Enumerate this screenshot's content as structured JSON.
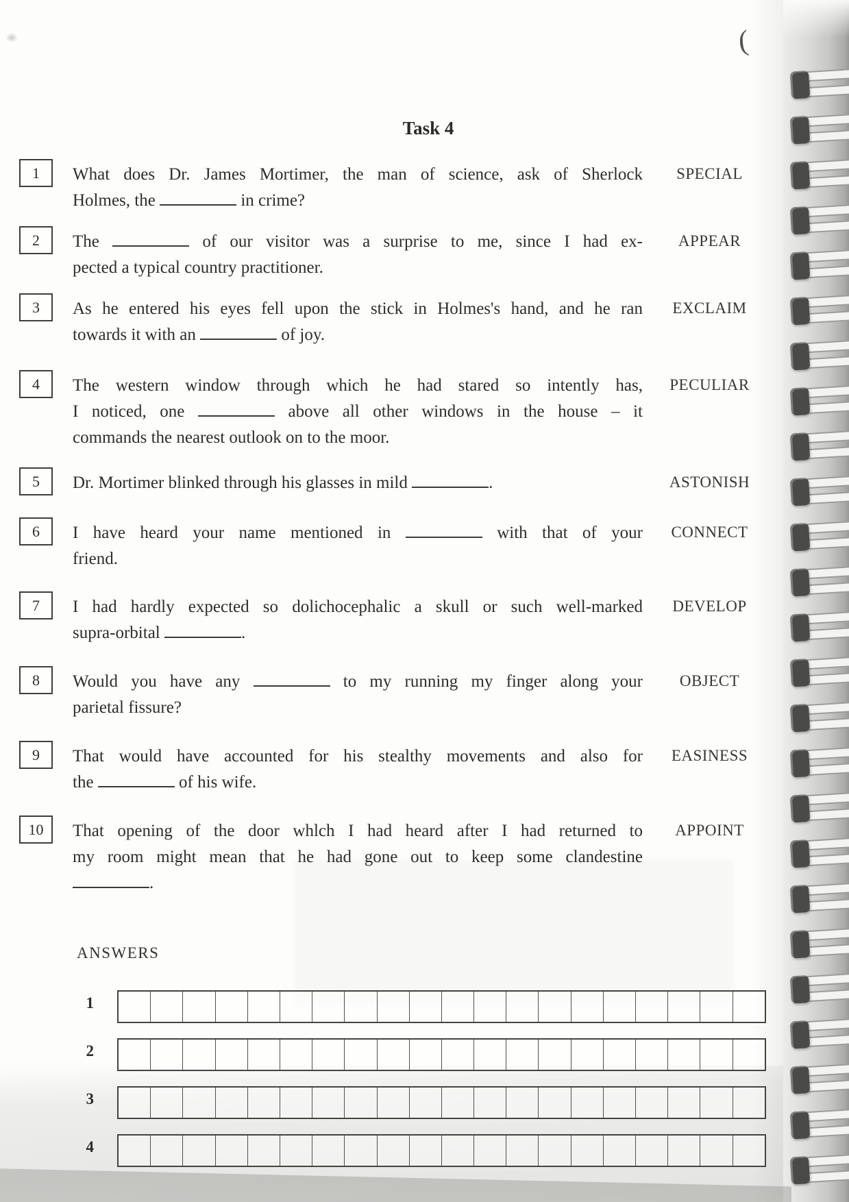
{
  "page": {
    "title": "Task 4"
  },
  "questions": [
    {
      "number": "1",
      "keyword": "SPECIAL",
      "lines": [
        [
          {
            "t": "What does Dr. James Mortimer, the man of science, ask of Sherlock"
          }
        ],
        [
          {
            "t": "Holmes, the "
          },
          {
            "blank": true
          },
          {
            "t": " in crime?"
          }
        ]
      ]
    },
    {
      "number": "2",
      "keyword": "APPEAR",
      "lines": [
        [
          {
            "t": "The "
          },
          {
            "blank": true
          },
          {
            "t": " of our visitor was a surprise to me, since I had ex-"
          }
        ],
        [
          {
            "t": "pected a typical country practitioner."
          }
        ]
      ]
    },
    {
      "number": "3",
      "keyword": "EXCLAIM",
      "lines": [
        [
          {
            "t": "As he entered his eyes fell upon the stick in Holmes's hand, and he ran"
          }
        ],
        [
          {
            "t": "towards it with an "
          },
          {
            "blank": true
          },
          {
            "t": " of joy."
          }
        ]
      ]
    },
    {
      "number": "4",
      "keyword": "PECULIAR",
      "lines": [
        [
          {
            "t": "The western window through which he had stared so intently has,"
          }
        ],
        [
          {
            "t": "I noticed, one "
          },
          {
            "blank": true
          },
          {
            "t": " above all other windows in the house – it"
          }
        ],
        [
          {
            "t": "commands the nearest outlook on to the moor."
          }
        ]
      ]
    },
    {
      "number": "5",
      "keyword": "ASTONISH",
      "lines": [
        [
          {
            "t": "Dr. Mortimer blinked through his glasses in mild "
          },
          {
            "blank": true
          },
          {
            "t": "."
          }
        ]
      ]
    },
    {
      "number": "6",
      "keyword": "CONNECT",
      "lines": [
        [
          {
            "t": "I have heard your name mentioned in "
          },
          {
            "blank": true
          },
          {
            "t": " with that of your"
          }
        ],
        [
          {
            "t": "friend."
          }
        ]
      ]
    },
    {
      "number": "7",
      "keyword": "DEVELOP",
      "lines": [
        [
          {
            "t": "I had hardly expected so dolichocephalic a skull or such well-marked"
          }
        ],
        [
          {
            "t": "supra-orbital "
          },
          {
            "blank": true
          },
          {
            "t": "."
          }
        ]
      ]
    },
    {
      "number": "8",
      "keyword": "OBJECT",
      "lines": [
        [
          {
            "t": "Would you have any "
          },
          {
            "blank": true
          },
          {
            "t": " to my running my finger along your"
          }
        ],
        [
          {
            "t": "parietal fissure?"
          }
        ]
      ]
    },
    {
      "number": "9",
      "keyword": "EASINESS",
      "lines": [
        [
          {
            "t": "That would have accounted for his stealthy movements and also for"
          }
        ],
        [
          {
            "t": "the "
          },
          {
            "blank": true
          },
          {
            "t": " of his wife."
          }
        ]
      ]
    },
    {
      "number": "10",
      "keyword": "APPOINT",
      "lines": [
        [
          {
            "t": "That opening of the door whlch I had heard after I had returned to"
          }
        ],
        [
          {
            "t": "my room might mean that he had gone out to keep some clandestine"
          }
        ],
        [
          {
            "blank": true
          },
          {
            "t": "."
          }
        ]
      ]
    }
  ],
  "answers": {
    "label": "ANSWERS",
    "cells_per_row": 20,
    "rows": [
      {
        "number": "1"
      },
      {
        "number": "2"
      },
      {
        "number": "3"
      },
      {
        "number": "4"
      }
    ]
  },
  "annotations": {
    "pen_mark": "("
  },
  "binding": {
    "coil_count": 25
  }
}
